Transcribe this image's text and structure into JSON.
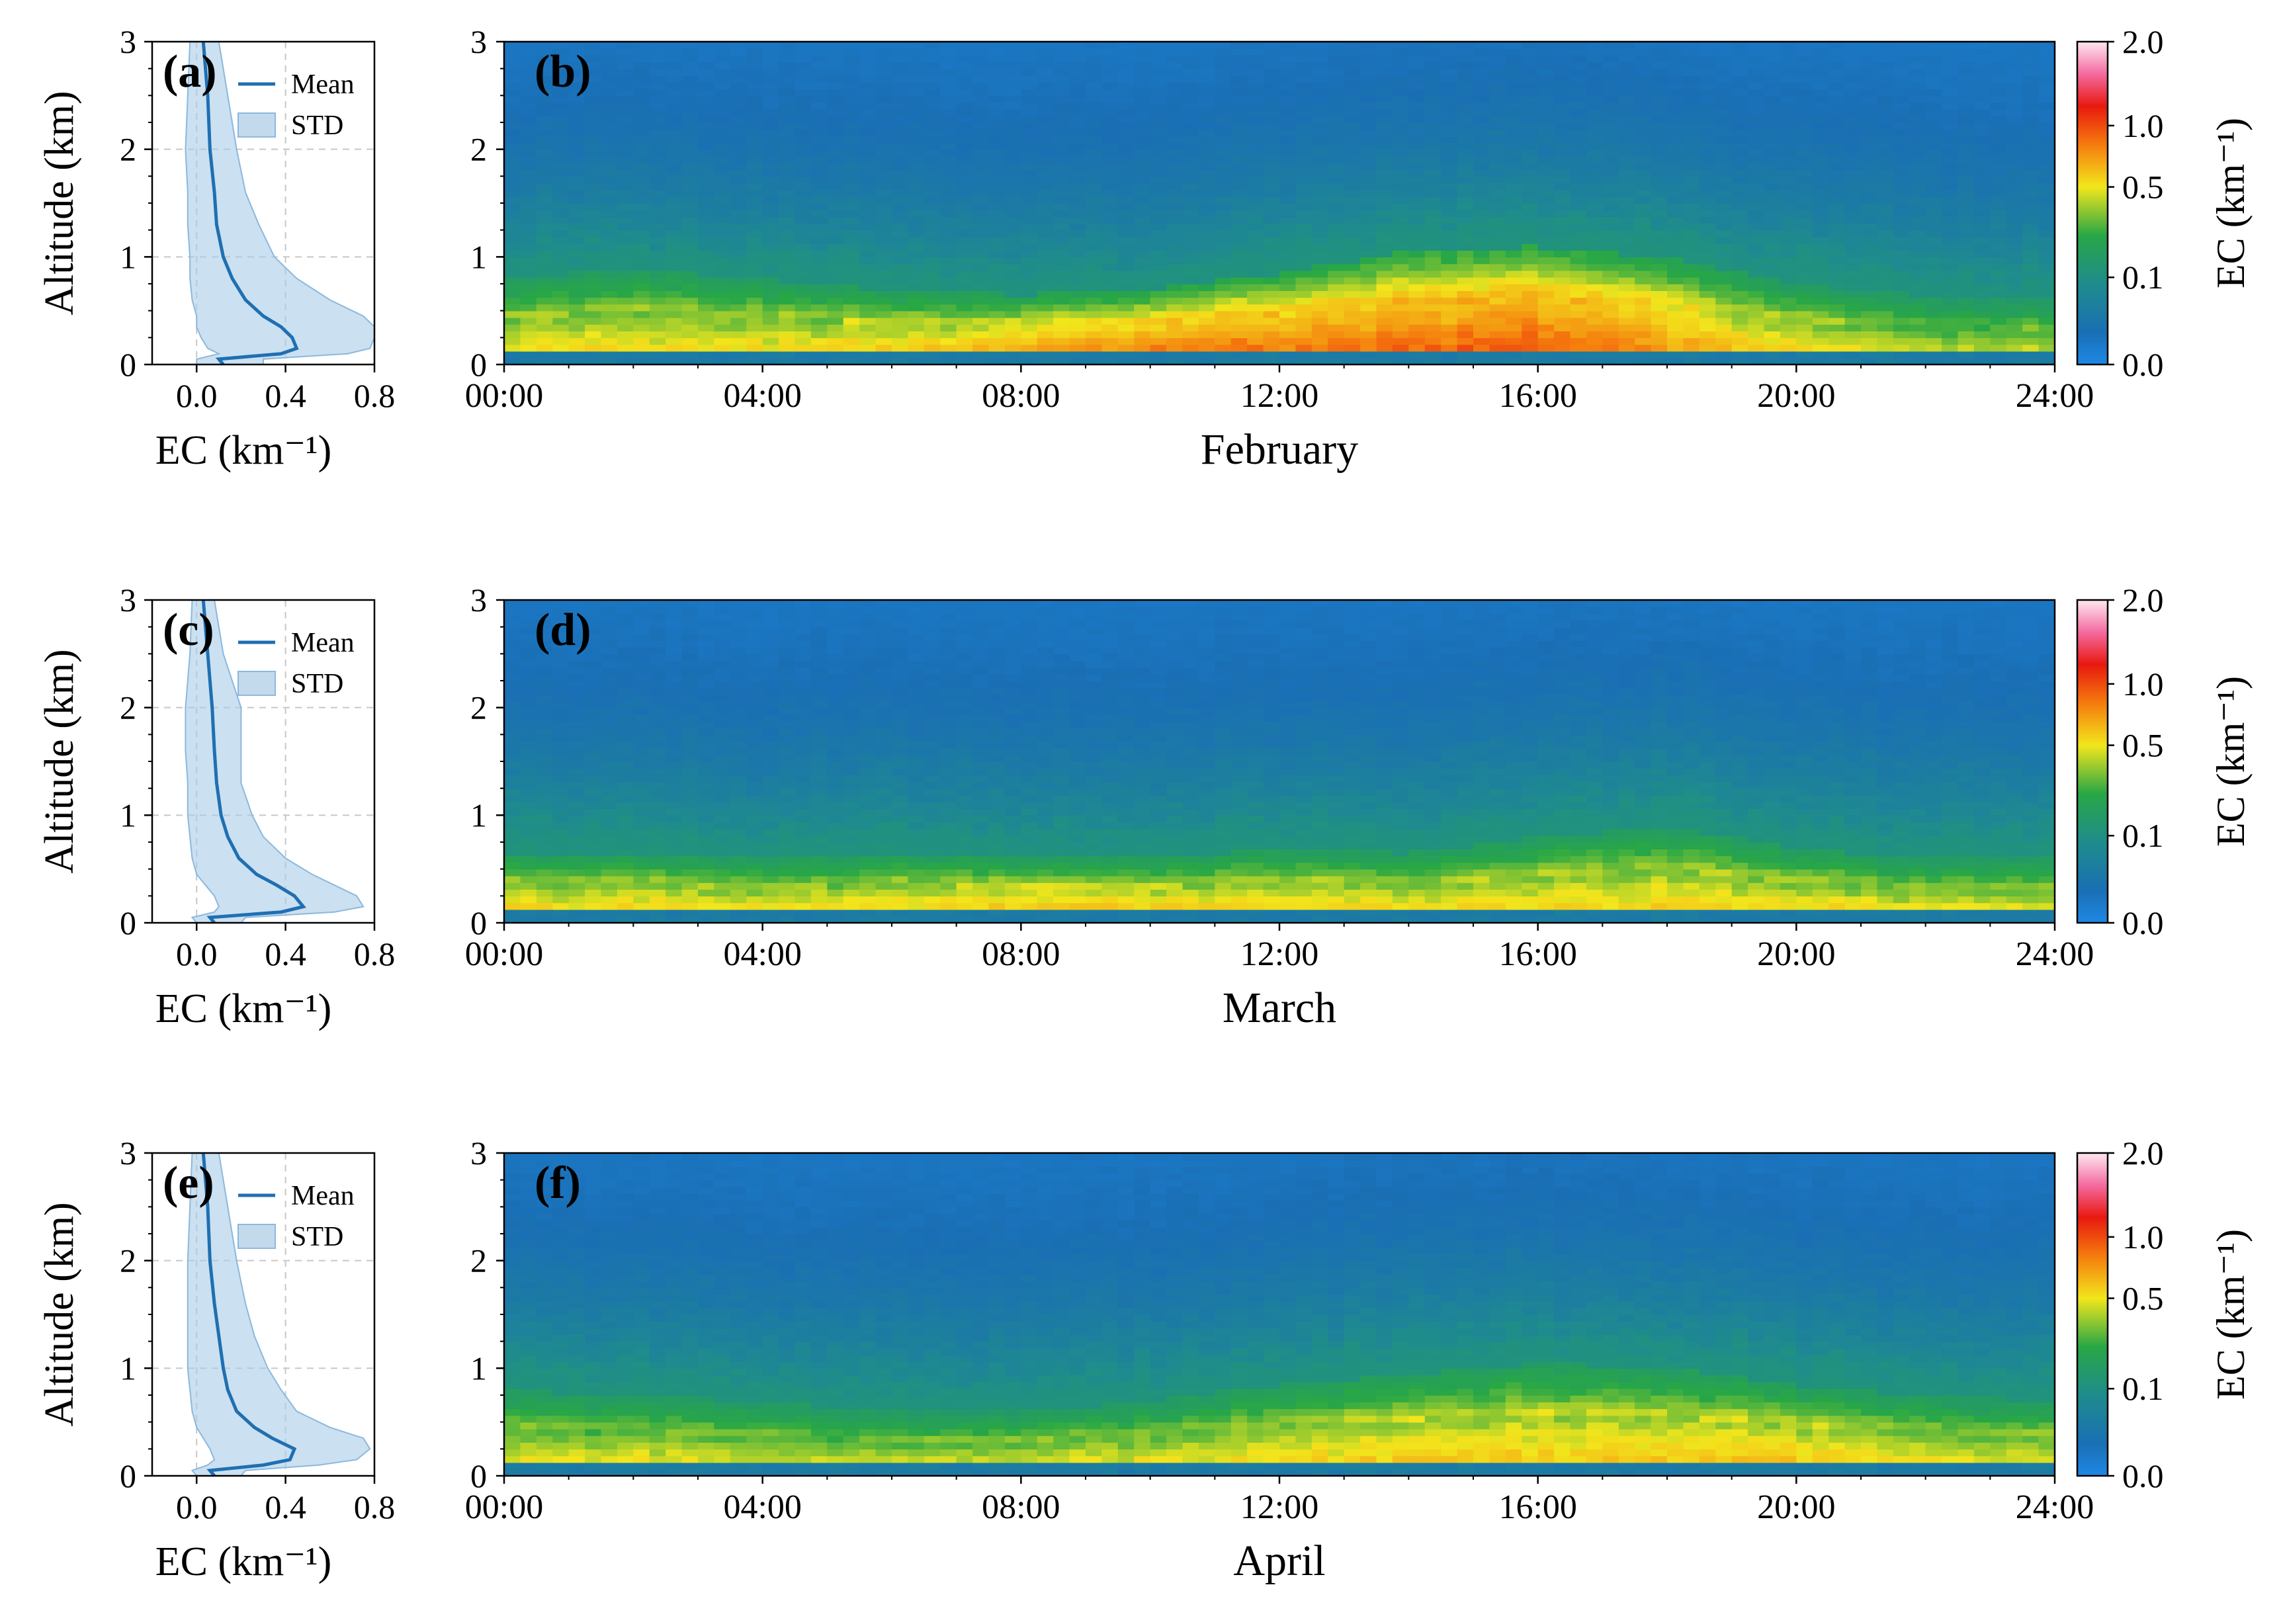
{
  "chart_data": {
    "type": "heatmap",
    "description": "Diurnal extinction coefficient (EC) height-time cross sections with mean/STD profiles",
    "shared": {
      "profile_xlabel": "EC (km⁻¹)",
      "profile_ylabel": "Altitude (km)",
      "profile_xticks": [
        "0.0",
        "0.4",
        "0.8"
      ],
      "profile_xlim": [
        -0.2,
        0.8
      ],
      "yticks": [
        "0",
        "1",
        "2",
        "3"
      ],
      "ylim": [
        0,
        3
      ],
      "time_ticks": [
        "00:00",
        "04:00",
        "08:00",
        "12:00",
        "16:00",
        "20:00",
        "24:00"
      ],
      "time_range_hours": [
        0,
        24
      ],
      "legend": {
        "mean": "Mean",
        "std": "STD"
      },
      "colorbar": {
        "label": "EC (km⁻¹)",
        "ticks": [
          "0.0",
          "0.1",
          "0.5",
          "1.0",
          "2.0"
        ],
        "tick_values": [
          0.0,
          0.1,
          0.5,
          1.0,
          2.0
        ]
      },
      "profile_altitudes_km": [
        0.0,
        0.05,
        0.1,
        0.15,
        0.25,
        0.35,
        0.45,
        0.6,
        0.8,
        1.0,
        1.3,
        1.6,
        2.0,
        2.5,
        3.0
      ]
    },
    "rows": [
      {
        "month": "February",
        "profile_label": "(a)",
        "heatmap_label": "(b)",
        "profile_mean": [
          0.12,
          0.1,
          0.38,
          0.45,
          0.43,
          0.38,
          0.3,
          0.22,
          0.16,
          0.12,
          0.09,
          0.08,
          0.06,
          0.05,
          0.03
        ],
        "profile_std_lower": [
          0.0,
          0.0,
          0.1,
          0.05,
          0.02,
          0.0,
          0.0,
          -0.02,
          -0.03,
          -0.03,
          -0.04,
          -0.04,
          -0.05,
          -0.04,
          -0.03
        ],
        "profile_std_upper": [
          0.3,
          0.3,
          0.68,
          0.78,
          0.8,
          0.8,
          0.75,
          0.6,
          0.45,
          0.35,
          0.28,
          0.22,
          0.18,
          0.14,
          0.1
        ],
        "diurnal_hours": [
          0,
          2,
          4,
          6,
          8,
          10,
          12,
          14,
          16,
          18,
          20,
          22,
          24
        ],
        "diurnal_surface_peak_ec": [
          0.55,
          0.55,
          0.55,
          0.58,
          0.7,
          0.85,
          0.85,
          0.9,
          0.95,
          0.75,
          0.55,
          0.45,
          0.45
        ],
        "diurnal_layer_top_km": [
          0.8,
          0.9,
          0.8,
          0.7,
          0.65,
          0.7,
          0.85,
          1.05,
          1.1,
          1.0,
          0.75,
          0.65,
          0.6
        ]
      },
      {
        "month": "March",
        "profile_label": "(c)",
        "heatmap_label": "(d)",
        "profile_mean": [
          0.08,
          0.06,
          0.38,
          0.48,
          0.44,
          0.36,
          0.27,
          0.19,
          0.14,
          0.11,
          0.09,
          0.08,
          0.07,
          0.05,
          0.03
        ],
        "profile_std_lower": [
          0.0,
          -0.02,
          0.08,
          0.1,
          0.08,
          0.04,
          0.0,
          -0.02,
          -0.03,
          -0.04,
          -0.04,
          -0.05,
          -0.05,
          -0.03,
          -0.02
        ],
        "profile_std_upper": [
          0.2,
          0.22,
          0.62,
          0.75,
          0.72,
          0.62,
          0.52,
          0.4,
          0.3,
          0.25,
          0.2,
          0.2,
          0.2,
          0.12,
          0.08
        ],
        "diurnal_hours": [
          0,
          2,
          4,
          6,
          8,
          10,
          12,
          14,
          16,
          18,
          20,
          22,
          24
        ],
        "diurnal_surface_peak_ec": [
          0.55,
          0.55,
          0.55,
          0.55,
          0.62,
          0.6,
          0.58,
          0.55,
          0.55,
          0.58,
          0.55,
          0.5,
          0.5
        ],
        "diurnal_layer_top_km": [
          0.65,
          0.65,
          0.6,
          0.65,
          0.6,
          0.6,
          0.7,
          0.65,
          0.8,
          0.9,
          0.7,
          0.6,
          0.6
        ]
      },
      {
        "month": "April",
        "profile_label": "(e)",
        "heatmap_label": "(f)",
        "profile_mean": [
          0.08,
          0.06,
          0.3,
          0.42,
          0.44,
          0.34,
          0.26,
          0.18,
          0.14,
          0.12,
          0.1,
          0.08,
          0.06,
          0.05,
          0.03
        ],
        "profile_std_lower": [
          0.0,
          -0.02,
          0.05,
          0.08,
          0.06,
          0.03,
          0.0,
          -0.02,
          -0.03,
          -0.04,
          -0.04,
          -0.04,
          -0.04,
          -0.03,
          -0.02
        ],
        "profile_std_upper": [
          0.2,
          0.22,
          0.55,
          0.72,
          0.78,
          0.75,
          0.6,
          0.45,
          0.38,
          0.32,
          0.26,
          0.22,
          0.18,
          0.14,
          0.1
        ],
        "diurnal_hours": [
          0,
          2,
          4,
          6,
          8,
          10,
          12,
          14,
          16,
          18,
          20,
          22,
          24
        ],
        "diurnal_surface_peak_ec": [
          0.5,
          0.5,
          0.48,
          0.45,
          0.48,
          0.5,
          0.55,
          0.58,
          0.6,
          0.62,
          0.6,
          0.52,
          0.48
        ],
        "diurnal_layer_top_km": [
          0.8,
          0.75,
          0.7,
          0.6,
          0.6,
          0.7,
          0.85,
          0.95,
          1.05,
          1.0,
          0.85,
          0.75,
          0.7
        ]
      }
    ]
  }
}
